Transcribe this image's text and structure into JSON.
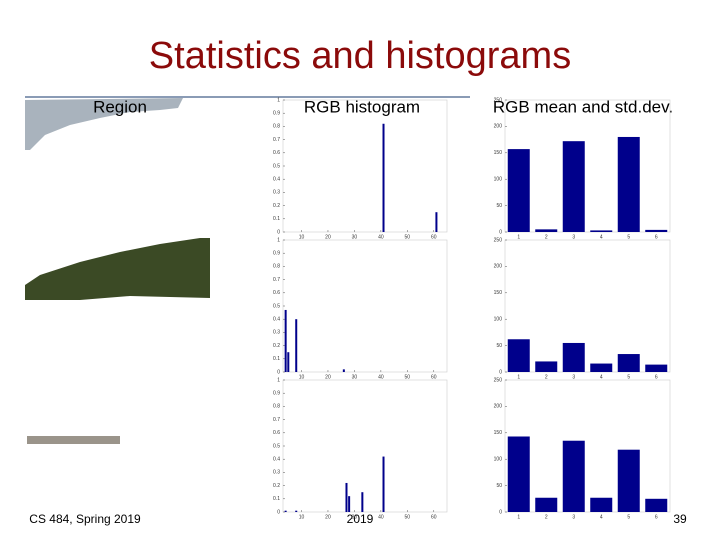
{
  "title": "Statistics and histograms",
  "labels": {
    "region": "Region",
    "histogram": "RGB histogram",
    "mean": "RGB mean and std.dev."
  },
  "footer": {
    "course": "CS 484, Spring 2019",
    "year": "2019",
    "page": "39"
  },
  "chart_data": [
    {
      "type": "bar",
      "x": [
        41,
        61
      ],
      "values": [
        0.82,
        0.15
      ],
      "color": "#00008b",
      "xlim": [
        3,
        65
      ],
      "xticks": [
        10,
        20,
        30,
        40,
        50,
        60
      ],
      "ylim": [
        0,
        1
      ],
      "yticks": [
        0,
        0.1,
        0.2,
        0.3,
        0.4,
        0.5,
        0.6,
        0.7,
        0.8,
        0.9,
        1
      ]
    },
    {
      "type": "bar",
      "categories": [
        "1",
        "2",
        "3",
        "4",
        "5",
        "6"
      ],
      "values": [
        157,
        5,
        172,
        3,
        180,
        4
      ],
      "color": "#00008b",
      "ylim": [
        0,
        250
      ],
      "yticks": [
        0,
        50,
        100,
        150,
        200,
        250
      ]
    },
    {
      "type": "bar",
      "x": [
        4,
        5,
        8,
        26
      ],
      "values": [
        0.47,
        0.15,
        0.4,
        0.02
      ],
      "color": "#00008b",
      "xlim": [
        3,
        65
      ],
      "xticks": [
        10,
        20,
        30,
        40,
        50,
        60
      ],
      "ylim": [
        0,
        1
      ],
      "yticks": [
        0,
        0.1,
        0.2,
        0.3,
        0.4,
        0.5,
        0.6,
        0.7,
        0.8,
        0.9,
        1
      ]
    },
    {
      "type": "bar",
      "categories": [
        "1",
        "2",
        "3",
        "4",
        "5",
        "6"
      ],
      "values": [
        62,
        20,
        55,
        16,
        34,
        14
      ],
      "color": "#00008b",
      "ylim": [
        0,
        250
      ],
      "yticks": [
        0,
        50,
        100,
        150,
        200,
        250
      ]
    },
    {
      "type": "bar",
      "x": [
        4,
        8,
        27,
        28,
        33,
        41
      ],
      "values": [
        0.01,
        0.01,
        0.22,
        0.12,
        0.15,
        0.42
      ],
      "color": "#00008b",
      "xlim": [
        3,
        65
      ],
      "xticks": [
        10,
        20,
        30,
        40,
        50,
        60
      ],
      "ylim": [
        0,
        1
      ],
      "yticks": [
        0,
        0.1,
        0.2,
        0.3,
        0.4,
        0.5,
        0.6,
        0.7,
        0.8,
        0.9,
        1
      ]
    },
    {
      "type": "bar",
      "categories": [
        "1",
        "2",
        "3",
        "4",
        "5",
        "6"
      ],
      "values": [
        143,
        27,
        135,
        27,
        118,
        25
      ],
      "color": "#00008b",
      "ylim": [
        0,
        250
      ],
      "yticks": [
        0,
        50,
        100,
        150,
        200,
        250
      ]
    }
  ]
}
